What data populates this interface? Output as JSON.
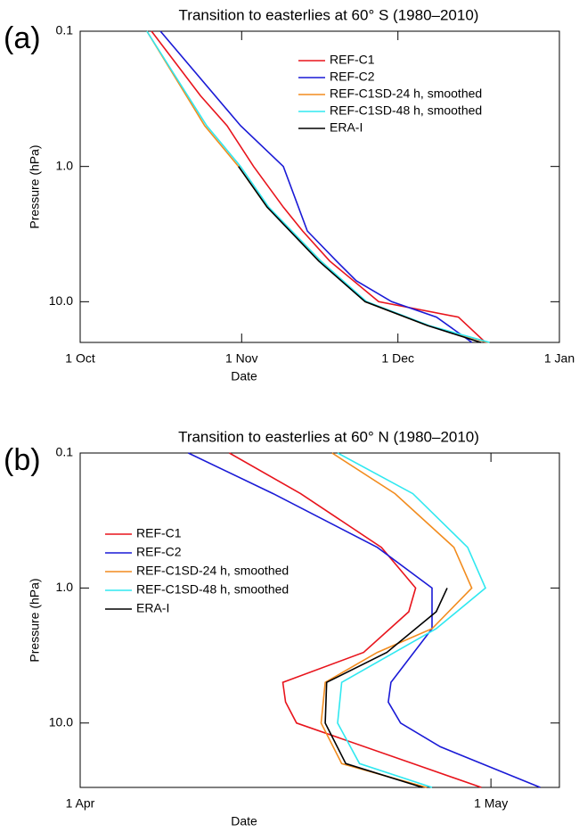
{
  "chart_data": [
    {
      "type": "line",
      "panel_label": "(a)",
      "title": "Transition to easterlies at 60° S (1980–2010)",
      "x_label": "Date",
      "y_label": "Pressure (hPa)",
      "log_y": true,
      "legend": "upper right",
      "xlim": [
        0,
        92
      ],
      "xticks": [
        {
          "value": 0,
          "label": "1 Oct"
        },
        {
          "value": 31,
          "label": "1 Nov"
        },
        {
          "value": 61,
          "label": "1 Dec"
        },
        {
          "value": 92,
          "label": "1 Jan"
        }
      ],
      "ylim": [
        20,
        0.1
      ],
      "yticks": [
        0.1,
        {
          "value": 1,
          "label": "1.0"
        },
        {
          "value": 10,
          "label": "10.0"
        }
      ],
      "series": [
        {
          "name": "REF-C1",
          "color": "#e8141c",
          "x": [
            13.7,
            23.1,
            28.2,
            33.3,
            39.0,
            42.7,
            47.9,
            57.3,
            72.6,
            77.8
          ],
          "y": [
            0.1,
            0.3,
            0.5,
            1,
            2,
            3,
            5,
            10,
            13,
            20
          ]
        },
        {
          "name": "REF-C2",
          "color": "#1a1ad6",
          "x": [
            15.4,
            30.8,
            39.0,
            43.6,
            49.2,
            53.0,
            59.8,
            68.4,
            75.2
          ],
          "y": [
            0.1,
            0.5,
            1,
            3,
            5,
            7,
            10,
            13,
            20
          ]
        },
        {
          "name": "REF-C1SD-24 h, smoothed",
          "color": "#f28c1e",
          "x": [
            12.8,
            23.9,
            30.4,
            35.9,
            46.2,
            54.7,
            66.7,
            78.3
          ],
          "y": [
            0.1,
            0.5,
            1,
            2,
            5,
            10,
            15,
            20
          ]
        },
        {
          "name": "REF-C1SD-48 h, smoothed",
          "color": "#30e8f0",
          "x": [
            12.8,
            24.3,
            30.8,
            36.2,
            46.2,
            55.0,
            67.0,
            78.6
          ],
          "y": [
            0.1,
            0.5,
            1,
            2,
            5,
            10,
            15,
            20
          ]
        },
        {
          "name": "ERA-I",
          "color": "#000000",
          "x": [
            30.4,
            35.9,
            45.8,
            54.7,
            66.7,
            76.9
          ],
          "y": [
            1,
            2,
            5,
            10,
            15,
            20
          ]
        }
      ]
    },
    {
      "type": "line",
      "panel_label": "(b)",
      "title": "Transition to easterlies at 60° N (1980–2010)",
      "x_label": "Date",
      "y_label": "Pressure (hPa)",
      "log_y": true,
      "legend": "center left",
      "xlim": [
        0,
        35
      ],
      "xticks": [
        {
          "value": 0,
          "label": "1 Apr"
        },
        {
          "value": 30,
          "label": "1 May"
        }
      ],
      "ylim": [
        30,
        0.1
      ],
      "yticks": [
        0.1,
        {
          "value": 1,
          "label": "1.0"
        },
        {
          "value": 10,
          "label": "10.0"
        }
      ],
      "series": [
        {
          "name": "REF-C1",
          "color": "#e8141c",
          "x": [
            10.9,
            16.1,
            22.0,
            24.5,
            24.0,
            20.7,
            14.8,
            15.0,
            15.8,
            24.3,
            29.3
          ],
          "y": [
            0.1,
            0.2,
            0.5,
            1,
            1.5,
            3,
            5,
            7,
            10,
            20,
            30
          ]
        },
        {
          "name": "REF-C2",
          "color": "#1a1ad6",
          "x": [
            7.9,
            14.1,
            21.7,
            25.7,
            25.7,
            22.7,
            22.5,
            23.4,
            26.3,
            33.6
          ],
          "y": [
            0.1,
            0.2,
            0.5,
            1,
            2,
            5,
            7,
            10,
            15,
            30
          ]
        },
        {
          "name": "REF-C1SD-24 h, smoothed",
          "color": "#f28c1e",
          "x": [
            18.4,
            23.0,
            27.3,
            28.6,
            25.7,
            21.7,
            17.9,
            17.6,
            19.1,
            25.3
          ],
          "y": [
            0.1,
            0.2,
            0.5,
            1,
            2,
            3,
            5,
            10,
            20,
            30
          ]
        },
        {
          "name": "REF-C1SD-48 h, smoothed",
          "color": "#30e8f0",
          "x": [
            18.8,
            24.3,
            28.3,
            29.6,
            26.0,
            19.1,
            18.8,
            20.4,
            25.7
          ],
          "y": [
            0.1,
            0.2,
            0.5,
            1,
            2,
            5,
            10,
            20,
            30
          ]
        },
        {
          "name": "ERA-I",
          "color": "#000000",
          "x": [
            26.8,
            26.0,
            22.4,
            18.0,
            17.9,
            19.4,
            25.0
          ],
          "y": [
            1,
            1.5,
            3,
            5,
            10,
            20,
            30
          ]
        }
      ]
    }
  ]
}
